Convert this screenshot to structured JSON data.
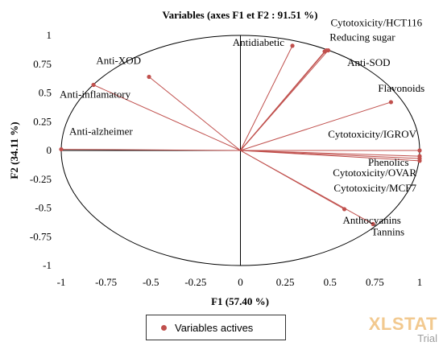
{
  "chart_data": {
    "type": "scatter",
    "subtype": "correlation-circle",
    "title": "Variables (axes F1 et F2 : 91.51 %)",
    "xlabel": "F1 (57.40 %)",
    "ylabel": "F2 (34.11 %)",
    "xlim": [
      -1,
      1
    ],
    "ylim": [
      -1,
      1
    ],
    "xticks": [
      "-1",
      "-0.75",
      "-0.5",
      "-0.25",
      "0",
      "0.25",
      "0.5",
      "0.75",
      "1"
    ],
    "yticks": [
      "1",
      "0.75",
      "0.5",
      "0.25",
      "0",
      "-0.25",
      "-0.5",
      "-0.75",
      "-1"
    ],
    "grid": false,
    "legend_position": "bottom",
    "series": [
      {
        "name": "Variables actives",
        "color": "#c0504d",
        "points": [
          {
            "label": "Cytotoxicity/HCT116",
            "x": 0.49,
            "y": 0.87
          },
          {
            "label": "Reducing sugar",
            "x": 0.48,
            "y": 0.87
          },
          {
            "label": "Antidiabetic",
            "x": 0.29,
            "y": 0.91
          },
          {
            "label": "Anti-SOD",
            "x": 0.47,
            "y": 0.86
          },
          {
            "label": "Anti-XOD",
            "x": -0.51,
            "y": 0.64
          },
          {
            "label": "Anti-inflamatory",
            "x": -0.82,
            "y": 0.57
          },
          {
            "label": "Flavonoids",
            "x": 0.84,
            "y": 0.42
          },
          {
            "label": "Anti-alzheimer",
            "x": -1.0,
            "y": 0.01
          },
          {
            "label": "Cytotoxicity/IGROV",
            "x": 1.0,
            "y": 0.0
          },
          {
            "label": "Phenolics",
            "x": 1.0,
            "y": -0.05
          },
          {
            "label": "Cytotoxicity/OVAR",
            "x": 1.0,
            "y": -0.07
          },
          {
            "label": "Cytotoxicity/MCF7",
            "x": 1.0,
            "y": -0.09
          },
          {
            "label": "Anthocyanins",
            "x": 0.58,
            "y": -0.51
          },
          {
            "label": "Tannins",
            "x": 0.74,
            "y": -0.64
          }
        ]
      }
    ]
  },
  "legend": {
    "label": "Variables actives"
  },
  "watermark": {
    "brand": "XLSTAT",
    "edition": "Trial"
  },
  "colors": {
    "series": "#c0504d",
    "axis": "#000000",
    "circle": "#000000"
  }
}
